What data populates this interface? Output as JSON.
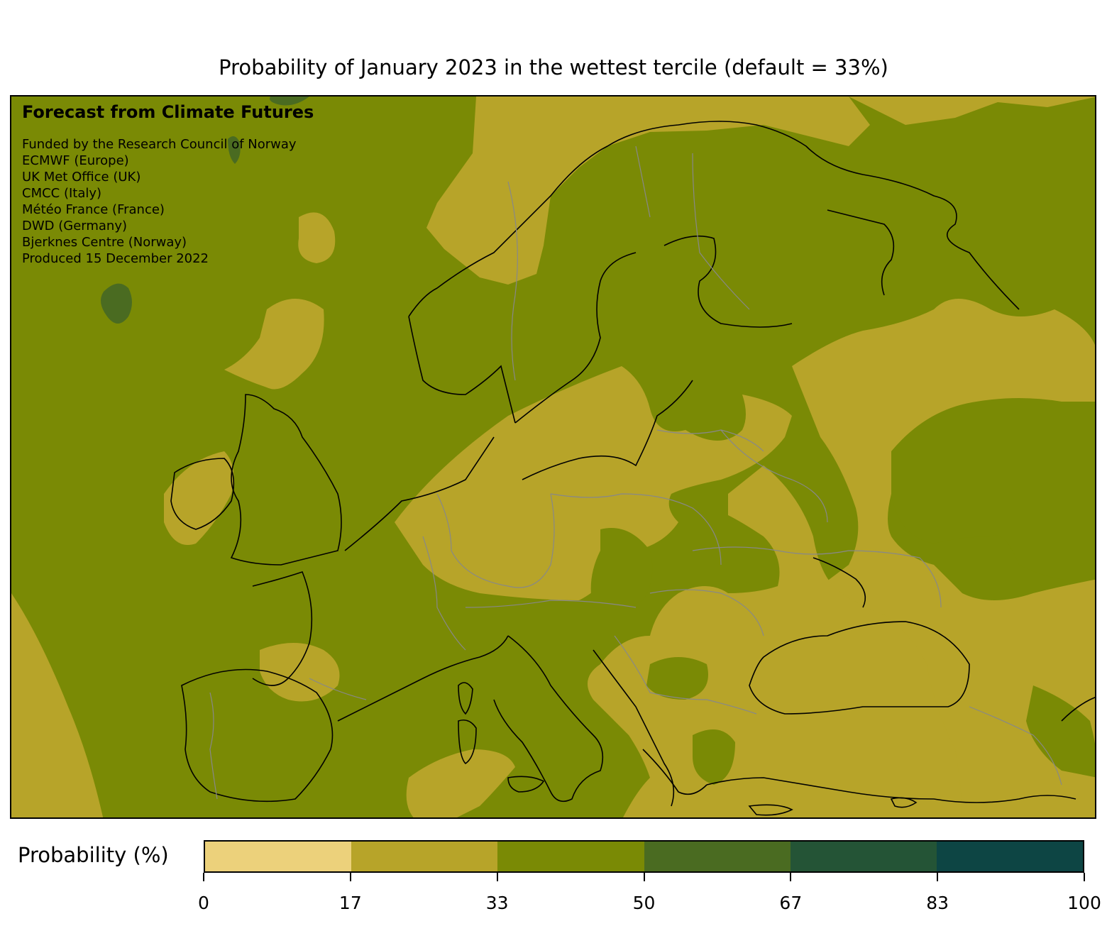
{
  "title": "Probability of January 2023 in the wettest tercile (default = 33%)",
  "credits": {
    "headline": "Forecast from Climate Futures",
    "lines": [
      "Funded by the Research Council of Norway",
      "ECMWF (Europe)",
      "UK Met Office (UK)",
      "CMCC (Italy)",
      "Météo France (France)",
      "DWD (Germany)",
      "Bjerknes Centre (Norway)",
      "Produced 15 December 2022"
    ]
  },
  "colorbar": {
    "label": "Probability (%)",
    "ticks": [
      "0",
      "17",
      "33",
      "50",
      "67",
      "83",
      "100"
    ],
    "bins": [
      {
        "range": [
          0,
          17
        ],
        "color": "#ecd17b"
      },
      {
        "range": [
          17,
          33
        ],
        "color": "#b7a429"
      },
      {
        "range": [
          33,
          50
        ],
        "color": "#7a8a05"
      },
      {
        "range": [
          50,
          67
        ],
        "color": "#4a6b21"
      },
      {
        "range": [
          67,
          83
        ],
        "color": "#245436"
      },
      {
        "range": [
          83,
          100
        ],
        "color": "#0d4544"
      }
    ]
  },
  "colors": {
    "coastline": "#000000",
    "borders": "#888888"
  }
}
